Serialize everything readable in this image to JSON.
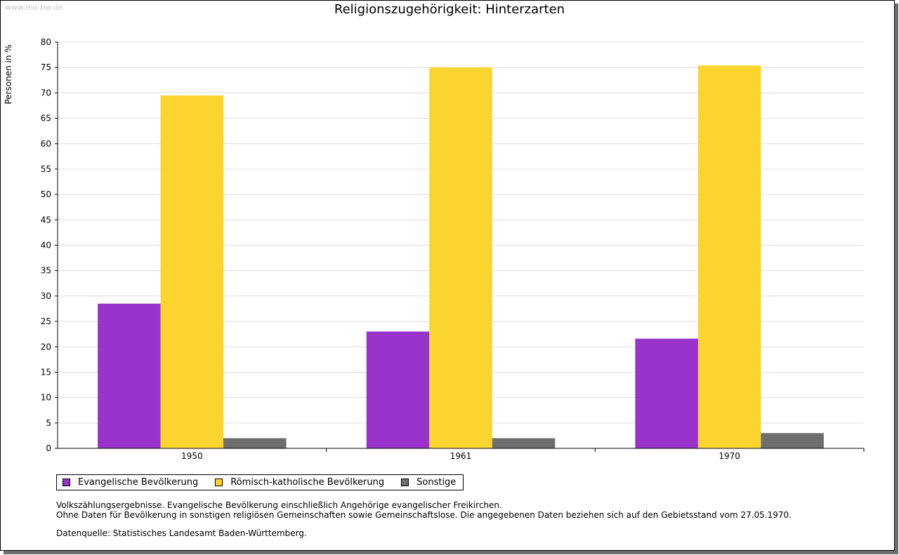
{
  "watermark": "www.leo-bw.de",
  "chart_data": {
    "type": "bar",
    "title": "Religionszugehörigkeit: Hinterzarten",
    "xlabel": "",
    "ylabel": "Personen in %",
    "ylim": [
      0,
      80
    ],
    "yticks": [
      0,
      5,
      10,
      15,
      20,
      25,
      30,
      35,
      40,
      45,
      50,
      55,
      60,
      65,
      70,
      75,
      80
    ],
    "categories": [
      "1950",
      "1961",
      "1970"
    ],
    "grid": true,
    "legend_position": "bottom-left",
    "series": [
      {
        "name": "Evangelische Bevölkerung",
        "color": "#9933cc",
        "values": [
          28.5,
          23.0,
          21.6
        ]
      },
      {
        "name": "Römisch-katholische Bevölkerung",
        "color": "#fbd52d",
        "values": [
          69.5,
          75.0,
          75.4
        ]
      },
      {
        "name": "Sonstige",
        "color": "#6e6e6e",
        "values": [
          2.0,
          2.0,
          3.0
        ]
      }
    ]
  },
  "notes": {
    "line1": "Volkszählungsergebnisse. Evangelische Bevölkerung einschließlich Angehörige evangelischer Freikirchen.",
    "line2": "Ohne Daten für Bevölkerung in sonstigen religiösen Gemeinschaften sowie Gemeinschaftslose. Die angegebenen Daten beziehen sich auf den Gebietsstand vom 27.05.1970.",
    "source": "Datenquelle: Statistisches Landesamt Baden-Württemberg."
  }
}
